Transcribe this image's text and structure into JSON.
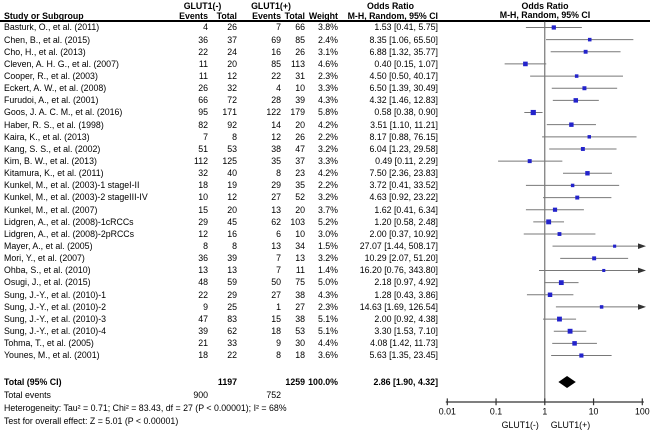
{
  "header": {
    "study_col": "Study or Subgroup",
    "group_neg": "GLUT1(-)",
    "group_pos": "GLUT1(+)",
    "events_col": "Events",
    "total_col": "Total",
    "weight_col": "Weight",
    "or_title": "Odds Ratio",
    "or_sub": "M-H, Random, 95% CI",
    "plot_or_title": "Odds Ratio",
    "plot_or_sub": "M-H, Random, 95% CI"
  },
  "chart_data": {
    "type": "forest",
    "effect_measure": "Odds Ratio, Mantel-Haenszel Random effects, 95% CI",
    "x_axis": {
      "scale": "log",
      "min": 0.01,
      "max": 100,
      "ticks": [
        "0.01",
        "0.1",
        "1",
        "10",
        "100"
      ],
      "left_label": "GLUT1(-)",
      "right_label": "GLUT1(+)"
    },
    "rows": [
      {
        "study": "Basturk, O., et al. (2011)",
        "e1": "4",
        "t1": "26",
        "e2": "7",
        "t2": "66",
        "w": "3.8%",
        "or": 1.53,
        "lo": 0.41,
        "hi": 5.75,
        "or_text": "1.53 [0.41, 5.75]"
      },
      {
        "study": "Chen, B., et al. (2015)",
        "e1": "36",
        "t1": "37",
        "e2": "69",
        "t2": "85",
        "w": "2.4%",
        "or": 8.35,
        "lo": 1.06,
        "hi": 65.5,
        "or_text": "8.35 [1.06, 65.50]"
      },
      {
        "study": "Cho, H., et al. (2013)",
        "e1": "22",
        "t1": "24",
        "e2": "16",
        "t2": "26",
        "w": "3.1%",
        "or": 6.88,
        "lo": 1.32,
        "hi": 35.77,
        "or_text": "6.88 [1.32, 35.77]"
      },
      {
        "study": "Cleven, A. H. G., et al. (2007)",
        "e1": "11",
        "t1": "20",
        "e2": "85",
        "t2": "113",
        "w": "4.6%",
        "or": 0.4,
        "lo": 0.15,
        "hi": 1.07,
        "or_text": "0.40 [0.15, 1.07]"
      },
      {
        "study": "Cooper, R., et al. (2003)",
        "e1": "11",
        "t1": "12",
        "e2": "22",
        "t2": "31",
        "w": "2.3%",
        "or": 4.5,
        "lo": 0.5,
        "hi": 40.17,
        "or_text": "4.50 [0.50, 40.17]"
      },
      {
        "study": "Eckert, A. W., et al. (2008)",
        "e1": "26",
        "t1": "32",
        "e2": "4",
        "t2": "10",
        "w": "3.3%",
        "or": 6.5,
        "lo": 1.39,
        "hi": 30.49,
        "or_text": "6.50 [1.39, 30.49]"
      },
      {
        "study": "Furudoi, A., et al. (2001)",
        "e1": "66",
        "t1": "72",
        "e2": "28",
        "t2": "39",
        "w": "4.3%",
        "or": 4.32,
        "lo": 1.46,
        "hi": 12.83,
        "or_text": "4.32 [1.46, 12.83]"
      },
      {
        "study": "Goos, J. A. C. M., et al. (2016)",
        "e1": "95",
        "t1": "171",
        "e2": "122",
        "t2": "179",
        "w": "5.8%",
        "or": 0.58,
        "lo": 0.38,
        "hi": 0.9,
        "or_text": "0.58 [0.38, 0.90]"
      },
      {
        "study": "Haber, R. S., et al. (1998)",
        "e1": "82",
        "t1": "92",
        "e2": "14",
        "t2": "20",
        "w": "4.2%",
        "or": 3.51,
        "lo": 1.1,
        "hi": 11.21,
        "or_text": "3.51 [1.10, 11.21]"
      },
      {
        "study": "Kaira, K., et al. (2013)",
        "e1": "7",
        "t1": "8",
        "e2": "12",
        "t2": "26",
        "w": "2.2%",
        "or": 8.17,
        "lo": 0.88,
        "hi": 76.15,
        "or_text": "8.17 [0.88, 76.15]"
      },
      {
        "study": "Kang, S. S., et al. (2002)",
        "e1": "51",
        "t1": "53",
        "e2": "38",
        "t2": "47",
        "w": "3.2%",
        "or": 6.04,
        "lo": 1.23,
        "hi": 29.58,
        "or_text": "6.04 [1.23, 29.58]"
      },
      {
        "study": "Kim, B. W., et al. (2013)",
        "e1": "112",
        "t1": "125",
        "e2": "35",
        "t2": "37",
        "w": "3.3%",
        "or": 0.49,
        "lo": 0.11,
        "hi": 2.29,
        "or_text": "0.49 [0.11, 2.29]"
      },
      {
        "study": "Kitamura, K., et al. (2011)",
        "e1": "32",
        "t1": "40",
        "e2": "8",
        "t2": "23",
        "w": "4.2%",
        "or": 7.5,
        "lo": 2.36,
        "hi": 23.83,
        "or_text": "7.50 [2.36, 23.83]"
      },
      {
        "study": "Kunkel, M., et al. (2003)-1 stageI-II",
        "e1": "18",
        "t1": "19",
        "e2": "29",
        "t2": "35",
        "w": "2.2%",
        "or": 3.72,
        "lo": 0.41,
        "hi": 33.52,
        "or_text": "3.72 [0.41, 33.52]"
      },
      {
        "study": "Kunkel, M., et al. (2003)-2 stageIII-IV",
        "e1": "10",
        "t1": "12",
        "e2": "27",
        "t2": "52",
        "w": "3.2%",
        "or": 4.63,
        "lo": 0.92,
        "hi": 23.22,
        "or_text": "4.63 [0.92, 23.22]"
      },
      {
        "study": "Kunkel, M., et al. (2007)",
        "e1": "15",
        "t1": "20",
        "e2": "13",
        "t2": "20",
        "w": "3.7%",
        "or": 1.62,
        "lo": 0.41,
        "hi": 6.34,
        "or_text": "1.62 [0.41, 6.34]"
      },
      {
        "study": "Lidgren, A., et al. (2008)-1cRCCs",
        "e1": "29",
        "t1": "45",
        "e2": "62",
        "t2": "103",
        "w": "5.2%",
        "or": 1.2,
        "lo": 0.58,
        "hi": 2.48,
        "or_text": "1.20 [0.58, 2.48]"
      },
      {
        "study": "Lidgren, A., et al. (2008)-2pRCCs",
        "e1": "12",
        "t1": "16",
        "e2": "6",
        "t2": "10",
        "w": "3.0%",
        "or": 2.0,
        "lo": 0.37,
        "hi": 10.92,
        "or_text": "2.00 [0.37, 10.92]"
      },
      {
        "study": "Mayer, A., et al. (2005)",
        "e1": "8",
        "t1": "8",
        "e2": "13",
        "t2": "34",
        "w": "1.5%",
        "or": 27.07,
        "lo": 1.44,
        "hi": 508.17,
        "or_text": "27.07 [1.44, 508.17]"
      },
      {
        "study": "Mori, Y., et al. (2007)",
        "e1": "36",
        "t1": "39",
        "e2": "7",
        "t2": "13",
        "w": "3.2%",
        "or": 10.29,
        "lo": 2.07,
        "hi": 51.2,
        "or_text": "10.29 [2.07, 51.20]"
      },
      {
        "study": "Ohba, S., et al. (2010)",
        "e1": "13",
        "t1": "13",
        "e2": "7",
        "t2": "11",
        "w": "1.4%",
        "or": 16.2,
        "lo": 0.76,
        "hi": 343.8,
        "or_text": "16.20 [0.76, 343.80]"
      },
      {
        "study": "Osugi, J., et al. (2015)",
        "e1": "48",
        "t1": "59",
        "e2": "50",
        "t2": "75",
        "w": "5.0%",
        "or": 2.18,
        "lo": 0.97,
        "hi": 4.92,
        "or_text": "2.18 [0.97, 4.92]"
      },
      {
        "study": "Sung, J.-Y., et al. (2010)-1",
        "e1": "22",
        "t1": "29",
        "e2": "27",
        "t2": "38",
        "w": "4.3%",
        "or": 1.28,
        "lo": 0.43,
        "hi": 3.86,
        "or_text": "1.28 [0.43, 3.86]"
      },
      {
        "study": "Sung, J.-Y., et al. (2010)-2",
        "e1": "9",
        "t1": "25",
        "e2": "1",
        "t2": "27",
        "w": "2.3%",
        "or": 14.63,
        "lo": 1.69,
        "hi": 126.54,
        "or_text": "14.63 [1.69, 126.54]"
      },
      {
        "study": "Sung, J.-Y., et al. (2010)-3",
        "e1": "47",
        "t1": "83",
        "e2": "15",
        "t2": "38",
        "w": "5.1%",
        "or": 2.0,
        "lo": 0.92,
        "hi": 4.38,
        "or_text": "2.00 [0.92, 4.38]"
      },
      {
        "study": "Sung, J.-Y., et al. (2010)-4",
        "e1": "39",
        "t1": "62",
        "e2": "18",
        "t2": "53",
        "w": "5.1%",
        "or": 3.3,
        "lo": 1.53,
        "hi": 7.1,
        "or_text": "3.30 [1.53, 7.10]"
      },
      {
        "study": "Tohma, T., et al. (2005)",
        "e1": "21",
        "t1": "33",
        "e2": "9",
        "t2": "30",
        "w": "4.4%",
        "or": 4.08,
        "lo": 1.42,
        "hi": 11.73,
        "or_text": "4.08 [1.42, 11.73]"
      },
      {
        "study": "Younes, M., et al. (2001)",
        "e1": "18",
        "t1": "22",
        "e2": "8",
        "t2": "18",
        "w": "3.6%",
        "or": 5.63,
        "lo": 1.35,
        "hi": 23.45,
        "or_text": "5.63 [1.35, 23.45]"
      }
    ],
    "total": {
      "label": "Total (95% CI)",
      "t1": "1197",
      "t2": "1259",
      "w": "100.0%",
      "or": 2.86,
      "lo": 1.9,
      "hi": 4.32,
      "or_text": "2.86 [1.90, 4.32]"
    },
    "total_events": {
      "label": "Total events",
      "e1": "900",
      "e2": "752"
    },
    "heterogeneity": "Heterogeneity: Tau² = 0.71; Chi² = 83.43, df = 27 (P < 0.00001); I² = 68%",
    "overall_effect": "Test for overall effect: Z = 5.01 (P < 0.00001)",
    "colors": {
      "marker": "#2323cb",
      "ci_line": "#787878",
      "axis": "#333333",
      "vline": "#5a5a5a",
      "diamond": "#000000",
      "header_line": "#000000"
    }
  }
}
